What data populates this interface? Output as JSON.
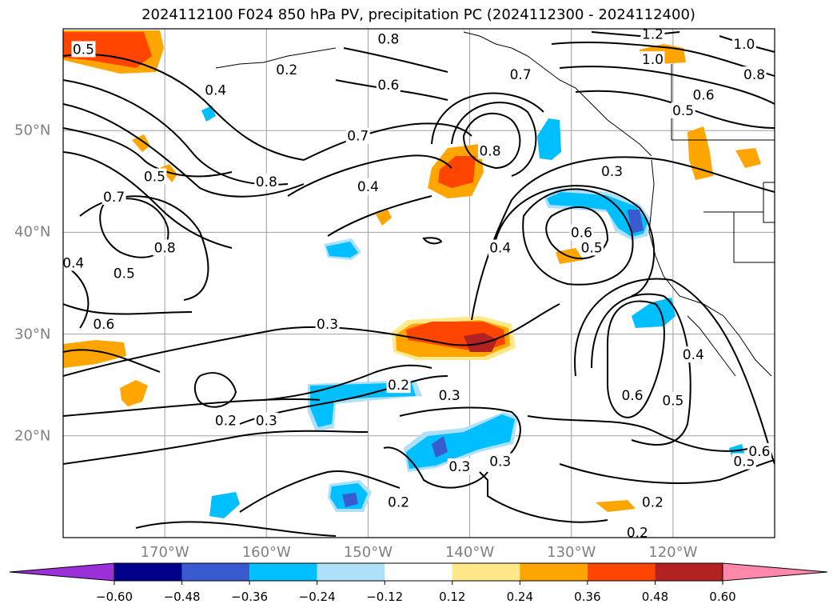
{
  "title": "2024112100 F024 850 hPa PV, precipitation PC (2024112300 - 2024112400)",
  "map": {
    "lon_range": [
      -180,
      -110
    ],
    "lat_range": [
      10,
      60
    ],
    "longitude_labels": [
      "170°W",
      "160°W",
      "150°W",
      "140°W",
      "130°W",
      "120°W"
    ],
    "longitude_values": [
      -170,
      -160,
      -150,
      -140,
      -130,
      -120
    ],
    "latitude_labels": [
      "50°N",
      "40°N",
      "30°N",
      "20°N"
    ],
    "latitude_values": [
      50,
      40,
      30,
      20
    ],
    "gridlines": true,
    "label_color": "#808080"
  },
  "contour_labels": [
    {
      "text": "0.5",
      "lon": -178,
      "lat": 58
    },
    {
      "text": "0.2",
      "lon": -158,
      "lat": 56
    },
    {
      "text": "0.4",
      "lon": -165,
      "lat": 54
    },
    {
      "text": "0.8",
      "lon": -148,
      "lat": 59
    },
    {
      "text": "1.2",
      "lon": -122,
      "lat": 59.5
    },
    {
      "text": "1.0",
      "lon": -122,
      "lat": 57
    },
    {
      "text": "1.0",
      "lon": -113,
      "lat": 58.5
    },
    {
      "text": "0.8",
      "lon": -112,
      "lat": 55.5
    },
    {
      "text": "0.6",
      "lon": -148,
      "lat": 54.5
    },
    {
      "text": "0.7",
      "lon": -135,
      "lat": 55.5
    },
    {
      "text": "0.6",
      "lon": -117,
      "lat": 53.5
    },
    {
      "text": "0.5",
      "lon": -119,
      "lat": 52
    },
    {
      "text": "0.7",
      "lon": -151,
      "lat": 49.5
    },
    {
      "text": "0.8",
      "lon": -138,
      "lat": 48
    },
    {
      "text": "0.5",
      "lon": -171,
      "lat": 45.5
    },
    {
      "text": "0.8",
      "lon": -160,
      "lat": 45
    },
    {
      "text": "0.4",
      "lon": -150,
      "lat": 44.5
    },
    {
      "text": "0.3",
      "lon": -126,
      "lat": 46
    },
    {
      "text": "0.7",
      "lon": -175,
      "lat": 43.5
    },
    {
      "text": "0.4",
      "lon": -137,
      "lat": 38.5
    },
    {
      "text": "0.6",
      "lon": -129,
      "lat": 40
    },
    {
      "text": "0.5",
      "lon": -128,
      "lat": 38.5
    },
    {
      "text": "0.8",
      "lon": -170,
      "lat": 38.5
    },
    {
      "text": "0.4",
      "lon": -179,
      "lat": 37
    },
    {
      "text": "0.5",
      "lon": -174,
      "lat": 36
    },
    {
      "text": "0.3",
      "lon": -154,
      "lat": 31
    },
    {
      "text": "0.6",
      "lon": -176,
      "lat": 31
    },
    {
      "text": "0.2",
      "lon": -147,
      "lat": 25
    },
    {
      "text": "0.3",
      "lon": -142,
      "lat": 24
    },
    {
      "text": "0.4",
      "lon": -118,
      "lat": 28
    },
    {
      "text": "0.6",
      "lon": -124,
      "lat": 24
    },
    {
      "text": "0.5",
      "lon": -120,
      "lat": 23.5
    },
    {
      "text": "0.2",
      "lon": -164,
      "lat": 21.5
    },
    {
      "text": "0.3",
      "lon": -160,
      "lat": 21.5
    },
    {
      "text": "0.3",
      "lon": -141,
      "lat": 17
    },
    {
      "text": "0.3",
      "lon": -137,
      "lat": 17.5
    },
    {
      "text": "0.2",
      "lon": -147,
      "lat": 13.5
    },
    {
      "text": "0.2",
      "lon": -122,
      "lat": 13.5
    },
    {
      "text": "0.5",
      "lon": -113,
      "lat": 17.5
    },
    {
      "text": "0.6",
      "lon": -111.5,
      "lat": 18.5
    },
    {
      "text": "0.2",
      "lon": -123.5,
      "lat": 10.5
    }
  ],
  "colorbar": {
    "ticks": [
      "−0.60",
      "−0.48",
      "−0.36",
      "−0.24",
      "−0.12",
      "0.12",
      "0.24",
      "0.36",
      "0.48",
      "0.60"
    ],
    "colors": [
      "#9b30d9",
      "#00008b",
      "#3a5bd0",
      "#00bfff",
      "#aee0fa",
      "#ffffff",
      "#ffe88a",
      "#ffa500",
      "#ff4500",
      "#b22222",
      "#ff88aa"
    ]
  },
  "precip_colors": {
    "neg_strong": "#3a5bd0",
    "neg_mid": "#00bfff",
    "neg_weak": "#aee0fa",
    "pos_weak": "#ffe88a",
    "pos_mid": "#ffa500",
    "pos_strong": "#ff4500",
    "pos_vstrong": "#b22222"
  }
}
